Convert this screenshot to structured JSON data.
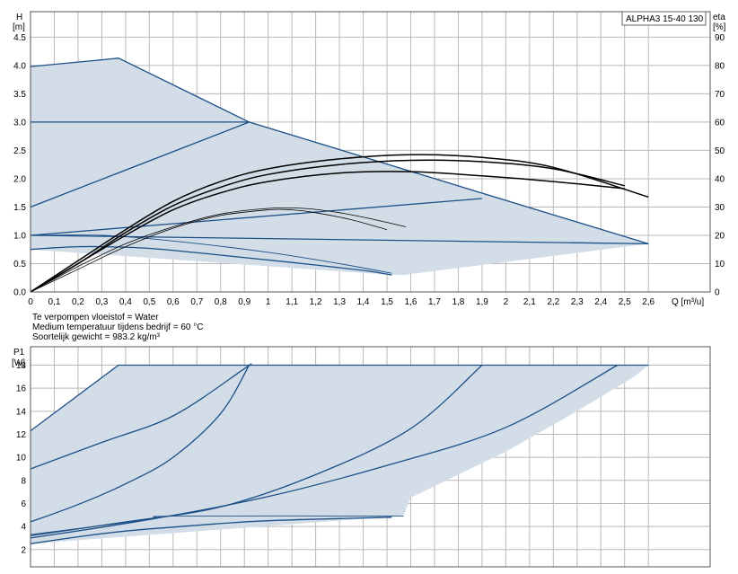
{
  "chart_data": [
    {
      "type": "line",
      "title": "",
      "model_label": "ALPHA3 15-40 130",
      "xlabel": "Q [m³/u]",
      "ylabel_left": [
        "H",
        "[m]"
      ],
      "ylabel_right": [
        "eta",
        "[%]"
      ],
      "x_ticks": [
        "0",
        "0,1",
        "0,2",
        "0,3",
        "0,4",
        "0,5",
        "0,6",
        "0,7",
        "0,8",
        "0,9",
        "1",
        "1,1",
        "1,2",
        "1,3",
        "1,4",
        "1,5",
        "1,6",
        "1,7",
        "1,8",
        "1,9",
        "2",
        "2,1",
        "2,2",
        "2,3",
        "2,4",
        "2,5",
        "2,6"
      ],
      "y_ticks": [
        "0.0",
        "0.5",
        "1.0",
        "1.5",
        "2.0",
        "2.5",
        "3.0",
        "3.5",
        "4.0",
        "4.5"
      ],
      "y2_ticks": [
        "0",
        "10",
        "20",
        "30",
        "40",
        "50",
        "60",
        "70",
        "80",
        "90"
      ],
      "xlim": [
        0,
        2.86
      ],
      "ylim": [
        0,
        4.95
      ],
      "y2lim": [
        0,
        99
      ],
      "grid": true,
      "operating_area": [
        [
          0,
          3.98
        ],
        [
          0.37,
          4.13
        ],
        [
          0.92,
          3.0
        ],
        [
          2.6,
          0.85
        ],
        [
          1.57,
          0.3
        ],
        [
          1.52,
          0.3
        ],
        [
          0,
          0.75
        ]
      ],
      "series": [
        {
          "role": "max_curve",
          "points": [
            [
              0,
              3.98
            ],
            [
              0.1,
              4.02
            ],
            [
              0.2,
              4.06
            ],
            [
              0.3,
              4.1
            ],
            [
              0.37,
              4.13
            ],
            [
              0.92,
              3.0
            ],
            [
              2.6,
              0.85
            ]
          ]
        },
        {
          "role": "constant_pressure_upper",
          "points": [
            [
              0,
              3.0
            ],
            [
              0.92,
              3.0
            ]
          ]
        },
        {
          "role": "proportional_pressure_upper",
          "points": [
            [
              0,
              1.5
            ],
            [
              0.92,
              3.0
            ]
          ]
        },
        {
          "role": "proportional_pressure_lower",
          "points": [
            [
              0,
              1.0
            ],
            [
              1.9,
              1.65
            ]
          ]
        },
        {
          "role": "constant_pressure_lower",
          "points": [
            [
              0,
              1.0
            ],
            [
              2.6,
              0.85
            ]
          ]
        },
        {
          "role": "min_curve",
          "points": [
            [
              0,
              0.75
            ],
            [
              0.1,
              0.78
            ],
            [
              0.2,
              0.8
            ],
            [
              0.3,
              0.8
            ],
            [
              0.5,
              0.77
            ],
            [
              0.8,
              0.65
            ],
            [
              1.1,
              0.52
            ],
            [
              1.4,
              0.38
            ],
            [
              1.52,
              0.3
            ]
          ]
        },
        {
          "role": "min_curve_secondary",
          "points": [
            [
              0,
              1.0
            ],
            [
              0.3,
              1.0
            ],
            [
              0.6,
              0.9
            ],
            [
              1.0,
              0.7
            ],
            [
              1.3,
              0.5
            ],
            [
              1.52,
              0.33
            ]
          ]
        }
      ],
      "efficiency_series": [
        {
          "points": [
            [
              0,
              0
            ],
            [
              0.2,
              8
            ],
            [
              0.4,
              16
            ],
            [
              0.6,
              22.5
            ],
            [
              0.8,
              27
            ],
            [
              1.0,
              29
            ],
            [
              1.1,
              29
            ],
            [
              1.2,
              28
            ],
            [
              1.35,
              25.5
            ],
            [
              1.5,
              22
            ]
          ]
        },
        {
          "points": [
            [
              0,
              0
            ],
            [
              0.2,
              9
            ],
            [
              0.4,
              17
            ],
            [
              0.6,
              23
            ],
            [
              0.8,
              27.5
            ],
            [
              1.0,
              29.5
            ],
            [
              1.15,
              29.5
            ],
            [
              1.3,
              28
            ],
            [
              1.45,
              25.5
            ],
            [
              1.58,
              23
            ]
          ]
        },
        {
          "points": [
            [
              0,
              0
            ],
            [
              0.2,
              10
            ],
            [
              0.4,
              20
            ],
            [
              0.6,
              29
            ],
            [
              0.8,
              35
            ],
            [
              1.0,
              39
            ],
            [
              1.3,
              42
            ],
            [
              1.6,
              42.5
            ],
            [
              1.9,
              41
            ],
            [
              2.2,
              39
            ],
            [
              2.5,
              36.5
            ]
          ]
        },
        {
          "points": [
            [
              0,
              0
            ],
            [
              0.2,
              10
            ],
            [
              0.4,
              21
            ],
            [
              0.6,
              30.5
            ],
            [
              0.8,
              37
            ],
            [
              1.0,
              41.5
            ],
            [
              1.3,
              45
            ],
            [
              1.6,
              46.5
            ],
            [
              1.9,
              46
            ],
            [
              2.2,
              43.5
            ],
            [
              2.5,
              37.5
            ]
          ]
        },
        {
          "points": [
            [
              0,
              0
            ],
            [
              0.2,
              11
            ],
            [
              0.4,
              22
            ],
            [
              0.6,
              32
            ],
            [
              0.8,
              39
            ],
            [
              1.0,
              43.5
            ],
            [
              1.3,
              47
            ],
            [
              1.6,
              48.5
            ],
            [
              1.9,
              47.5
            ],
            [
              2.2,
              44
            ],
            [
              2.6,
              33.5
            ]
          ]
        }
      ]
    },
    {
      "type": "line",
      "title": "",
      "xlabel": "",
      "ylabel_left": [
        "P1",
        "[W]"
      ],
      "y_ticks": [
        "2",
        "4",
        "6",
        "8",
        "10",
        "12",
        "14",
        "16",
        "18"
      ],
      "xlim": [
        0,
        2.86
      ],
      "ylim": [
        0.5,
        19.6
      ],
      "grid": true,
      "operating_area": [
        [
          0,
          12.3
        ],
        [
          0.37,
          18.0
        ],
        [
          2.6,
          18.0
        ],
        [
          2.54,
          17.0
        ],
        [
          2.3,
          14.0
        ],
        [
          2.0,
          10.5
        ],
        [
          1.8,
          8.5
        ],
        [
          1.6,
          6.5
        ],
        [
          1.57,
          5.0
        ],
        [
          1.52,
          4.85
        ],
        [
          0,
          2.5
        ]
      ],
      "series": [
        {
          "role": "max_power",
          "points": [
            [
              0,
              12.3
            ],
            [
              0.37,
              18.0
            ],
            [
              2.6,
              18.0
            ]
          ]
        },
        {
          "role": "power_curve",
          "points": [
            [
              0,
              9.0
            ],
            [
              0.3,
              11.3
            ],
            [
              0.6,
              13.6
            ],
            [
              0.9,
              17.7
            ],
            [
              0.92,
              18.0
            ]
          ]
        },
        {
          "role": "power_curve",
          "points": [
            [
              0,
              4.4
            ],
            [
              0.2,
              5.9
            ],
            [
              0.4,
              7.7
            ],
            [
              0.6,
              10.0
            ],
            [
              0.8,
              13.8
            ],
            [
              0.92,
              18.0
            ]
          ]
        },
        {
          "role": "power_curve",
          "points": [
            [
              0,
              3.2
            ],
            [
              0.4,
              4.4
            ],
            [
              0.8,
              5.7
            ],
            [
              1.2,
              8.5
            ],
            [
              1.6,
              12.5
            ],
            [
              1.9,
              18.0
            ]
          ]
        },
        {
          "role": "power_curve",
          "points": [
            [
              0,
              3.0
            ],
            [
              0.5,
              4.6
            ],
            [
              1.0,
              6.6
            ],
            [
              1.5,
              9.3
            ],
            [
              2.0,
              12.6
            ],
            [
              2.47,
              18.0
            ]
          ]
        },
        {
          "role": "constant_curve_thin",
          "points": [
            [
              0,
              3.3
            ],
            [
              0.5,
              4.6
            ],
            [
              0.6,
              4.9
            ],
            [
              1.57,
              4.9
            ]
          ]
        },
        {
          "role": "min_power",
          "points": [
            [
              0,
              2.5
            ],
            [
              0.2,
              3.1
            ],
            [
              0.4,
              3.6
            ],
            [
              0.7,
              4.1
            ],
            [
              1.0,
              4.5
            ],
            [
              1.52,
              4.8
            ]
          ]
        }
      ]
    }
  ],
  "conditions": {
    "fluid": "Te verpompen vloeistof = Water",
    "temperature": "Medium temperatuur tijdens bedrijf = 60 °C",
    "density": "Soortelijk gewicht = 983.2 kg/m³"
  },
  "colors": {
    "area_fill": "#d2dde8",
    "curve": "#1b4f86",
    "efficiency": "#000000",
    "grid": "#b8b8b8"
  }
}
